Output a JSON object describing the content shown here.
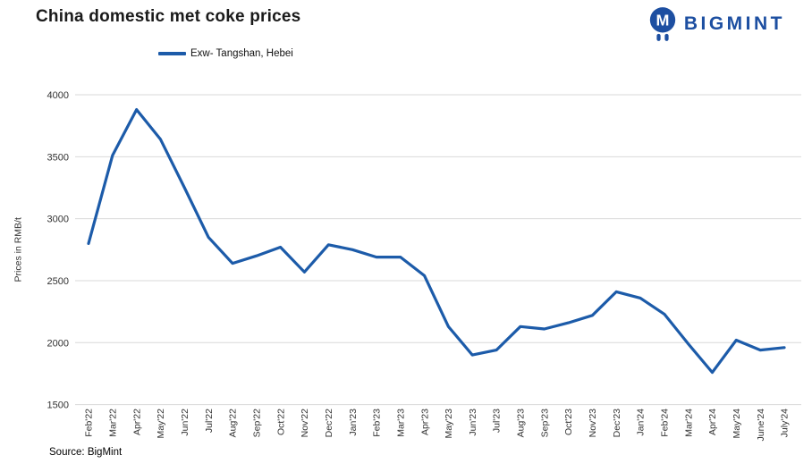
{
  "header": {
    "title": "China domestic met coke prices",
    "brand": "BIGMINT"
  },
  "legend": {
    "label": "Exw- Tangshan, Hebei"
  },
  "source": {
    "label": "Source: BigMint"
  },
  "colors": {
    "line": "#1c5ba9",
    "brand": "#1d4fa1",
    "gridline": "#d9d9d9",
    "axis_text": "#333333"
  },
  "chart_data": {
    "type": "line",
    "title": "China domestic met coke prices",
    "xlabel": "",
    "ylabel": "Prices in RMB/t",
    "ylim": [
      1500,
      4000
    ],
    "ytick_step": 500,
    "grid": "horizontal",
    "legend_position": "top-left",
    "categories": [
      "Feb'22",
      "Mar'22",
      "Apr'22",
      "May'22",
      "Jun'22",
      "Jul'22",
      "Aug'22",
      "Sep'22",
      "Oct'22",
      "Nov'22",
      "Dec'22",
      "Jan'23",
      "Feb'23",
      "Mar'23",
      "Apr'23",
      "May'23",
      "Jun'23",
      "Jul'23",
      "Aug'23",
      "Sep'23",
      "Oct'23",
      "Nov'23",
      "Dec'23",
      "Jan'24",
      "Feb'24",
      "Mar'24",
      "Apr'24",
      "May'24",
      "June'24",
      "July'24"
    ],
    "series": [
      {
        "name": "Exw- Tangshan, Hebei",
        "color": "#1c5ba9",
        "values": [
          2800,
          3510,
          3880,
          3640,
          3250,
          2850,
          2640,
          2700,
          2770,
          2570,
          2790,
          2750,
          2690,
          2690,
          2540,
          2130,
          1900,
          1940,
          2130,
          2110,
          2160,
          2220,
          2410,
          2360,
          2230,
          1990,
          1760,
          2020,
          1940,
          1960
        ]
      }
    ]
  }
}
